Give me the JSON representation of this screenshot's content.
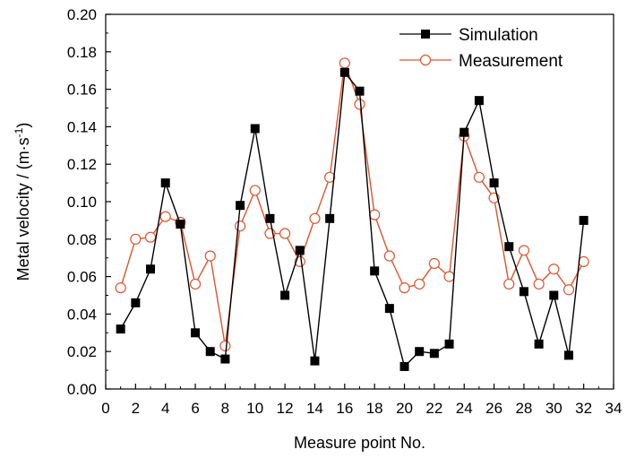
{
  "chart_data": {
    "type": "line",
    "xlabel": "Measure point No.",
    "ylabel_main": "Metal velocity / (m·s",
    "ylabel_sup": "-1",
    "ylabel_close": ")",
    "xlim": [
      0,
      34
    ],
    "ylim": [
      0.0,
      0.2
    ],
    "x_ticks": [
      "0",
      "2",
      "4",
      "6",
      "8",
      "10",
      "12",
      "14",
      "16",
      "18",
      "20",
      "22",
      "24",
      "26",
      "28",
      "30",
      "32",
      "34"
    ],
    "y_ticks": [
      "0.00",
      "0.02",
      "0.04",
      "0.06",
      "0.08",
      "0.10",
      "0.12",
      "0.14",
      "0.16",
      "0.18",
      "0.20"
    ],
    "x_tick_values": [
      0,
      2,
      4,
      6,
      8,
      10,
      12,
      14,
      16,
      18,
      20,
      22,
      24,
      26,
      28,
      30,
      32,
      34
    ],
    "y_tick_values": [
      0,
      0.02,
      0.04,
      0.06,
      0.08,
      0.1,
      0.12,
      0.14,
      0.16,
      0.18,
      0.2
    ],
    "legend_position": "top-right",
    "grid": false,
    "x": [
      1,
      2,
      3,
      4,
      5,
      6,
      7,
      8,
      9,
      10,
      11,
      12,
      13,
      14,
      15,
      16,
      17,
      18,
      19,
      20,
      21,
      22,
      23,
      24,
      25,
      26,
      27,
      28,
      29,
      30,
      31,
      32
    ],
    "series": [
      {
        "name": "Simulation",
        "color": "#000000",
        "marker": "filled-square",
        "values": [
          0.032,
          0.046,
          0.064,
          0.11,
          0.088,
          0.03,
          0.02,
          0.016,
          0.098,
          0.139,
          0.091,
          0.05,
          0.074,
          0.015,
          0.091,
          0.169,
          0.159,
          0.063,
          0.043,
          0.012,
          0.02,
          0.019,
          0.024,
          0.137,
          0.154,
          0.11,
          0.076,
          0.052,
          0.024,
          0.05,
          0.018,
          0.09
        ]
      },
      {
        "name": "Measurement",
        "color": "#e0532f",
        "marker": "open-circle",
        "values": [
          0.054,
          0.08,
          0.081,
          0.092,
          0.089,
          0.056,
          0.071,
          0.023,
          0.087,
          0.106,
          0.083,
          0.083,
          0.068,
          0.091,
          0.113,
          0.174,
          0.152,
          0.093,
          0.071,
          0.054,
          0.056,
          0.067,
          0.06,
          0.135,
          0.113,
          0.102,
          0.056,
          0.074,
          0.056,
          0.064,
          0.053,
          0.068
        ]
      }
    ]
  }
}
